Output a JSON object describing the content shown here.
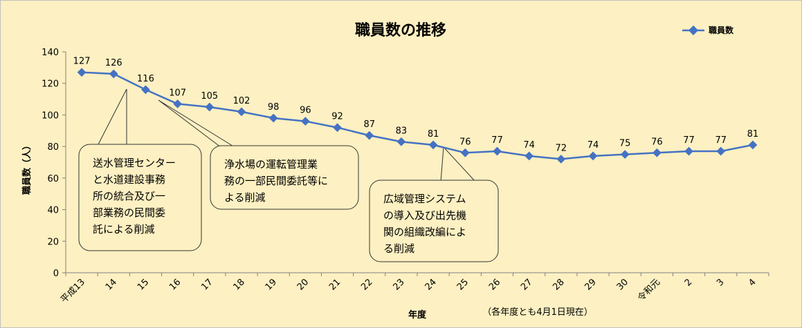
{
  "chart_data": {
    "type": "line",
    "title": "職員数の推移",
    "xlabel": "年度",
    "ylabel": "職員数（人）",
    "note": "（各年度とも4月1日現在）",
    "ylim": [
      0,
      140
    ],
    "yticks": [
      0,
      20,
      40,
      60,
      80,
      100,
      120,
      140
    ],
    "grid": false,
    "legend": "top-right",
    "categories": [
      "平成13",
      "14",
      "15",
      "16",
      "17",
      "18",
      "19",
      "20",
      "21",
      "22",
      "23",
      "24",
      "25",
      "26",
      "27",
      "28",
      "29",
      "30",
      "令和元",
      "2",
      "3",
      "4"
    ],
    "series": [
      {
        "name": "職員数",
        "color": "#4472c4",
        "values": [
          127,
          126,
          116,
          107,
          105,
          102,
          98,
          96,
          92,
          87,
          83,
          81,
          76,
          77,
          74,
          72,
          74,
          75,
          76,
          77,
          77,
          81
        ]
      }
    ],
    "annotations": [
      {
        "lines": [
          "送水管理センター",
          "と水道建設事務",
          "所の統合及び一",
          "部業務の民間委",
          "託による削減"
        ],
        "points_to": [
          "14",
          "15"
        ]
      },
      {
        "lines": [
          "浄水場の運転管理業",
          "務の一部民間委託等に",
          "よる削減"
        ],
        "points_to": [
          "15"
        ]
      },
      {
        "lines": [
          "広域管理システム",
          "の導入及び出先機",
          "関の組織改編によ",
          "る削減"
        ],
        "points_to": [
          "24"
        ]
      }
    ]
  }
}
